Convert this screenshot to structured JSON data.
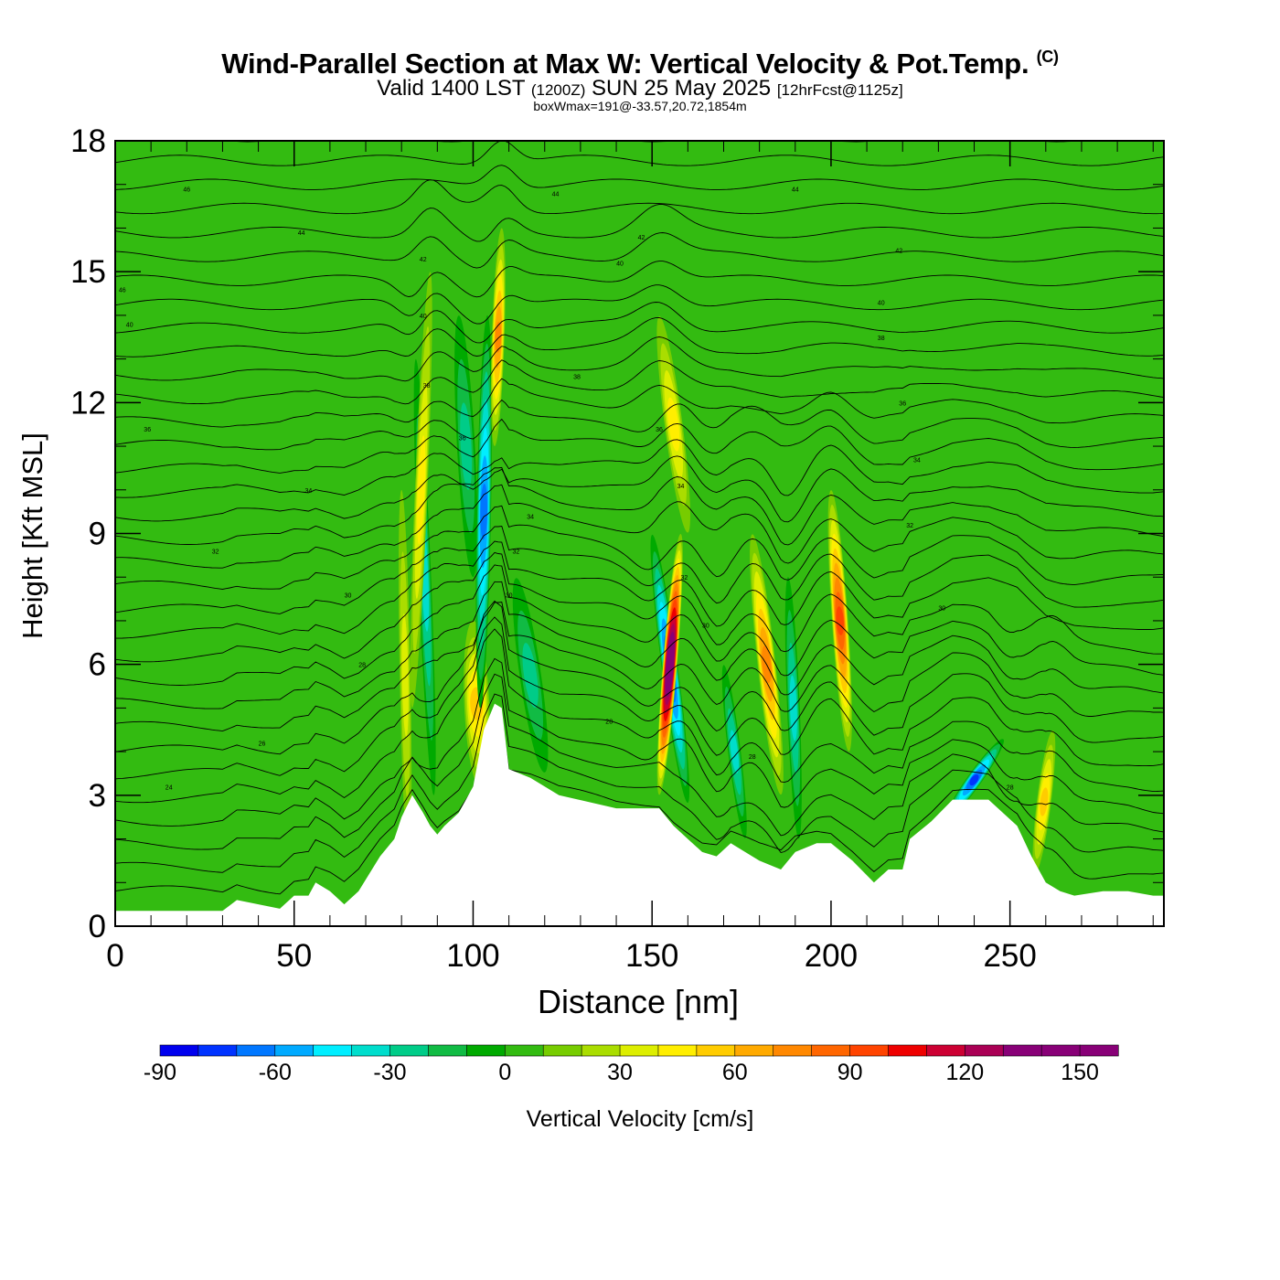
{
  "title": {
    "main": "Wind-Parallel Section at Max W: Vertical Velocity & Pot.Temp.",
    "copyright": "(C)",
    "valid_prefix": "Valid 1400 LST",
    "valid_utc": "(1200Z)",
    "valid_date": "SUN 25 May 2025",
    "forecast": "[12hrFcst@1125z]",
    "box_wmax": "boxWmax=191@-33.57,20.72,1854m"
  },
  "colors": {
    "background_field": "#33bb11",
    "terrain": "#ffffff",
    "contour": "#000000",
    "scale": [
      "#0000ee",
      "#0033ff",
      "#0077ff",
      "#00aaff",
      "#00eeff",
      "#00ddcc",
      "#00cc88",
      "#11bb44",
      "#00aa00",
      "#33bb11",
      "#77cc00",
      "#aadd00",
      "#ddee00",
      "#ffee00",
      "#ffcc00",
      "#ffaa00",
      "#ff8800",
      "#ff6600",
      "#ff4400",
      "#ee0000",
      "#cc0033",
      "#aa0055",
      "#880077"
    ]
  },
  "chart_data": {
    "type": "heatmap",
    "title": "Wind-Parallel Section at Max W: Vertical Velocity & Pot.Temp.",
    "xlabel": "Distance [nm]",
    "ylabel": "Height [Kft MSL]",
    "xlim": [
      0,
      293
    ],
    "ylim": [
      0,
      18
    ],
    "x_ticks": [
      0,
      50,
      100,
      150,
      200,
      250
    ],
    "y_ticks": [
      0,
      3,
      6,
      9,
      12,
      15,
      18
    ],
    "x_tick_labels": [
      "0",
      "50",
      "100",
      "150",
      "200",
      "250"
    ],
    "y_tick_labels": [
      "0",
      "3",
      "6",
      "9",
      "12",
      "15",
      "18"
    ],
    "colorbar": {
      "label": "Vertical Velocity [cm/s]",
      "min": -90,
      "max": 160,
      "step": 10,
      "tick_values": [
        -90,
        -60,
        -30,
        0,
        30,
        60,
        90,
        120,
        150
      ],
      "tick_labels": [
        "-90",
        "-60",
        "-30",
        "0",
        "30",
        "60",
        "90",
        "120",
        "150"
      ]
    },
    "terrain_profile_kft": [
      [
        0,
        0.35
      ],
      [
        30,
        0.35
      ],
      [
        34,
        0.6
      ],
      [
        46,
        0.4
      ],
      [
        50,
        0.7
      ],
      [
        54,
        0.7
      ],
      [
        56,
        1
      ],
      [
        60,
        0.8
      ],
      [
        64,
        0.5
      ],
      [
        68,
        0.8
      ],
      [
        71,
        1.2
      ],
      [
        74,
        1.6
      ],
      [
        78,
        2
      ],
      [
        80,
        2.5
      ],
      [
        83,
        3
      ],
      [
        86,
        2.6
      ],
      [
        88,
        2.3
      ],
      [
        90,
        2.1
      ],
      [
        92,
        2.3
      ],
      [
        96,
        2.6
      ],
      [
        100,
        3.2
      ],
      [
        103,
        4.5
      ],
      [
        106,
        5.1
      ],
      [
        108,
        5.0
      ],
      [
        110,
        3.6
      ],
      [
        116,
        3.4
      ],
      [
        124,
        3.0
      ],
      [
        140,
        2.7
      ],
      [
        148,
        2.7
      ],
      [
        152,
        2.7
      ],
      [
        156,
        2.3
      ],
      [
        160,
        2.0
      ],
      [
        164,
        1.7
      ],
      [
        168,
        1.6
      ],
      [
        172,
        1.9
      ],
      [
        176,
        1.7
      ],
      [
        180,
        1.5
      ],
      [
        186,
        1.3
      ],
      [
        190,
        1.7
      ],
      [
        196,
        1.9
      ],
      [
        200,
        1.9
      ],
      [
        206,
        1.5
      ],
      [
        212,
        1.0
      ],
      [
        216,
        1.3
      ],
      [
        220,
        1.3
      ],
      [
        222,
        2.0
      ],
      [
        228,
        2.4
      ],
      [
        234,
        2.9
      ],
      [
        244,
        2.9
      ],
      [
        248,
        2.6
      ],
      [
        252,
        2.3
      ],
      [
        256,
        1.6
      ],
      [
        260,
        1.0
      ],
      [
        264,
        0.8
      ],
      [
        268,
        0.7
      ],
      [
        276,
        0.8
      ],
      [
        283,
        0.8
      ],
      [
        290,
        0.7
      ],
      [
        293,
        0.7
      ]
    ],
    "features": [
      {
        "x": 80,
        "width": 3,
        "y_bottom": 1.5,
        "y_top": 10,
        "tilt": 2,
        "w": 35
      },
      {
        "x": 84,
        "width": 3.5,
        "y_bottom": 3,
        "y_top": 13,
        "tilt": 5,
        "w": -40
      },
      {
        "x": 88,
        "width": 3.5,
        "y_bottom": 5,
        "y_top": 15,
        "tilt": -5,
        "w": 40
      },
      {
        "x": 100,
        "width": 7,
        "y_bottom": 3.2,
        "y_top": 7,
        "tilt": 2,
        "w": 50
      },
      {
        "x": 96,
        "width": 5,
        "y_bottom": 8,
        "y_top": 14,
        "tilt": 4,
        "w": -30
      },
      {
        "x": 104,
        "width": 4,
        "y_bottom": 5,
        "y_top": 14,
        "tilt": -2,
        "w": -70
      },
      {
        "x": 108,
        "width": 3.5,
        "y_bottom": 11,
        "y_top": 16,
        "tilt": -2,
        "w": 70
      },
      {
        "x": 112,
        "width": 6,
        "y_bottom": 3.5,
        "y_top": 8,
        "tilt": 8,
        "w": -35
      },
      {
        "x": 150,
        "width": 4.5,
        "y_bottom": 2.8,
        "y_top": 9,
        "tilt": 10,
        "w": -85
      },
      {
        "x": 158,
        "width": 4,
        "y_bottom": 3,
        "y_top": 9,
        "tilt": -6,
        "w": 160
      },
      {
        "x": 152,
        "width": 5,
        "y_bottom": 9,
        "y_top": 14,
        "tilt": 8,
        "w": 40
      },
      {
        "x": 170,
        "width": 3.5,
        "y_bottom": 2,
        "y_top": 6,
        "tilt": 6,
        "w": -40
      },
      {
        "x": 178,
        "width": 5,
        "y_bottom": 3,
        "y_top": 9,
        "tilt": 8,
        "w": 75
      },
      {
        "x": 188,
        "width": 3.5,
        "y_bottom": 2,
        "y_top": 8,
        "tilt": 3,
        "w": -40
      },
      {
        "x": 200,
        "width": 4.5,
        "y_bottom": 4,
        "y_top": 10,
        "tilt": 5,
        "w": 90
      },
      {
        "x": 250,
        "width": 4,
        "y_bottom": 2.2,
        "y_top": 4.5,
        "tilt": -20,
        "w": -80
      },
      {
        "x": 262,
        "width": 4,
        "y_bottom": 1.2,
        "y_top": 4.5,
        "tilt": -5,
        "w": 50
      }
    ],
    "theta_contour_labels": [
      {
        "text": "46",
        "x": 20,
        "y": 16.9
      },
      {
        "text": "44",
        "x": 52,
        "y": 15.9
      },
      {
        "text": "46",
        "x": 2,
        "y": 14.6
      },
      {
        "text": "40",
        "x": 4,
        "y": 13.8
      },
      {
        "text": "36",
        "x": 9,
        "y": 11.4
      },
      {
        "text": "34",
        "x": 54,
        "y": 10
      },
      {
        "text": "32",
        "x": 28,
        "y": 8.6
      },
      {
        "text": "30",
        "x": 65,
        "y": 7.6
      },
      {
        "text": "28",
        "x": 69,
        "y": 6
      },
      {
        "text": "26",
        "x": 41,
        "y": 4.2
      },
      {
        "text": "24",
        "x": 15,
        "y": 3.2
      },
      {
        "text": "42",
        "x": 86,
        "y": 15.3
      },
      {
        "text": "40",
        "x": 86,
        "y": 14
      },
      {
        "text": "38",
        "x": 87,
        "y": 12.4
      },
      {
        "text": "36",
        "x": 97,
        "y": 11.2
      },
      {
        "text": "44",
        "x": 123,
        "y": 16.8
      },
      {
        "text": "42",
        "x": 147,
        "y": 15.8
      },
      {
        "text": "40",
        "x": 141,
        "y": 15.2
      },
      {
        "text": "38",
        "x": 129,
        "y": 12.6
      },
      {
        "text": "34",
        "x": 116,
        "y": 9.4
      },
      {
        "text": "32",
        "x": 112,
        "y": 8.6
      },
      {
        "text": "30",
        "x": 110,
        "y": 7.6
      },
      {
        "text": "28",
        "x": 138,
        "y": 4.7
      },
      {
        "text": "36",
        "x": 152,
        "y": 11.4
      },
      {
        "text": "34",
        "x": 158,
        "y": 10.1
      },
      {
        "text": "32",
        "x": 159,
        "y": 8
      },
      {
        "text": "30",
        "x": 165,
        "y": 6.9
      },
      {
        "text": "28",
        "x": 178,
        "y": 3.9
      },
      {
        "text": "44",
        "x": 190,
        "y": 16.9
      },
      {
        "text": "42",
        "x": 219,
        "y": 15.5
      },
      {
        "text": "40",
        "x": 214,
        "y": 14.3
      },
      {
        "text": "38",
        "x": 214,
        "y": 13.5
      },
      {
        "text": "36",
        "x": 220,
        "y": 12
      },
      {
        "text": "34",
        "x": 224,
        "y": 10.7
      },
      {
        "text": "32",
        "x": 222,
        "y": 9.2
      },
      {
        "text": "30",
        "x": 231,
        "y": 7.3
      },
      {
        "text": "28",
        "x": 250,
        "y": 3.2
      }
    ]
  }
}
